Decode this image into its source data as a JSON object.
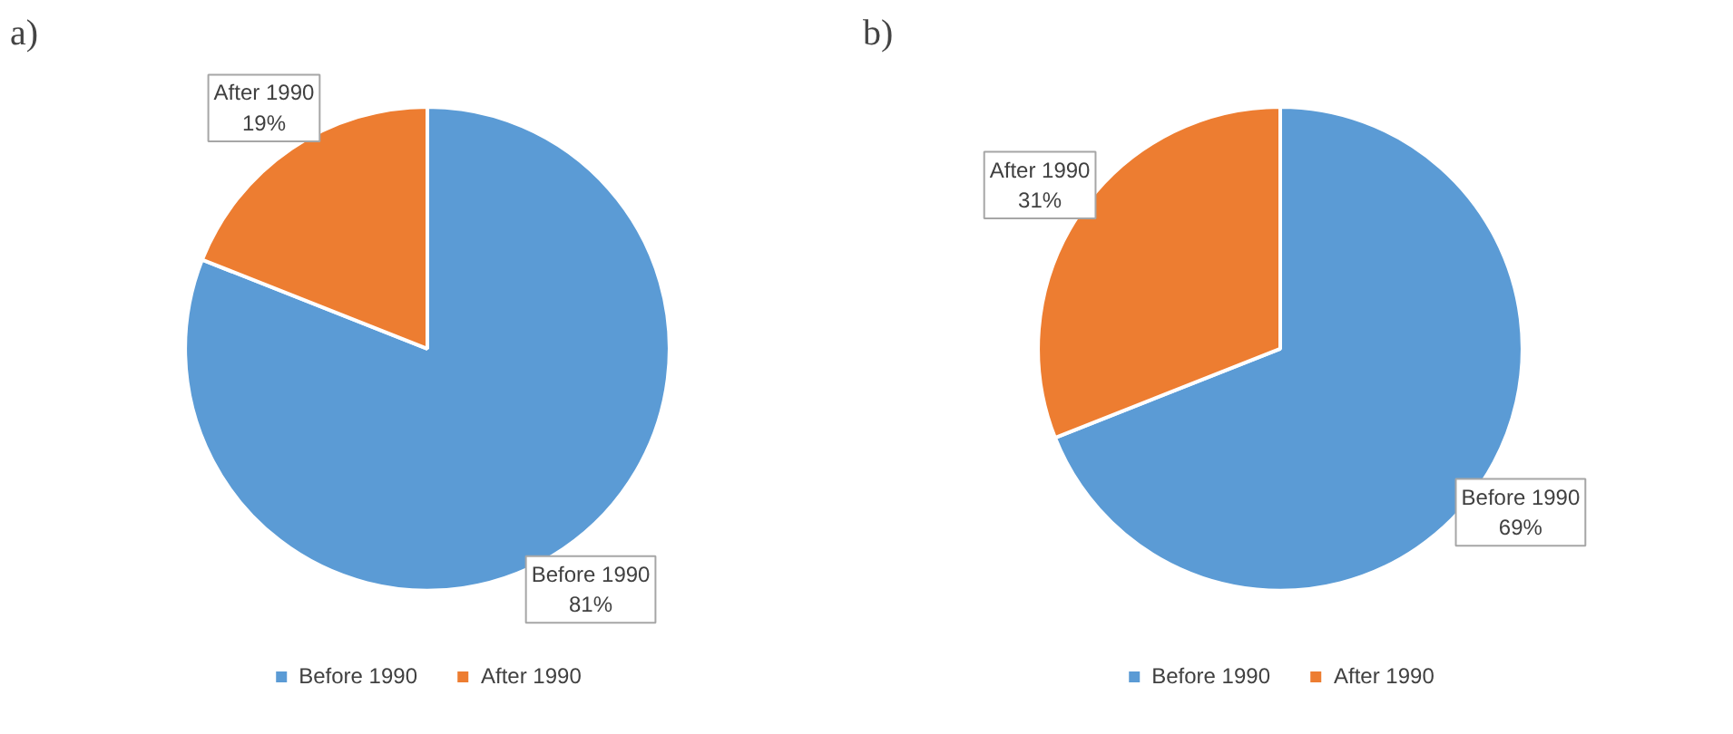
{
  "chart_data": [
    {
      "type": "pie",
      "title": "a)",
      "categories": [
        "Before 1990",
        "After 1990"
      ],
      "values": [
        81,
        19
      ],
      "colors": [
        "#5b9bd5",
        "#ed7d31"
      ],
      "value_labels": [
        "81%",
        "19%"
      ],
      "legend": "bottom"
    },
    {
      "type": "pie",
      "title": "b)",
      "categories": [
        "Before 1990",
        "After 1990"
      ],
      "values": [
        69,
        31
      ],
      "colors": [
        "#5b9bd5",
        "#ed7d31"
      ],
      "value_labels": [
        "69%",
        "31%"
      ],
      "legend": "bottom"
    }
  ]
}
